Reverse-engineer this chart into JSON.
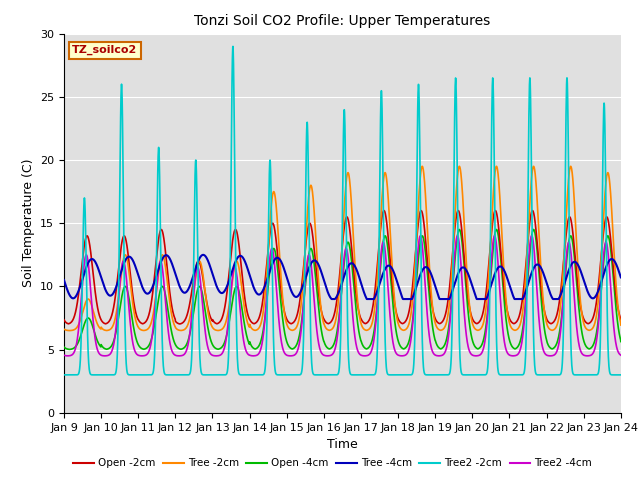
{
  "title": "Tonzi Soil CO2 Profile: Upper Temperatures",
  "xlabel": "Time",
  "ylabel": "Soil Temperature (C)",
  "ylim": [
    0,
    30
  ],
  "xlim_days": [
    9,
    24
  ],
  "plot_bg_color": "#e0e0e0",
  "series": {
    "Open_2cm": {
      "color": "#cc0000",
      "label": "Open -2cm"
    },
    "Tree_2cm": {
      "color": "#ff8800",
      "label": "Tree -2cm"
    },
    "Open_4cm": {
      "color": "#00bb00",
      "label": "Open -4cm"
    },
    "Tree_4cm": {
      "color": "#0000bb",
      "label": "Tree -4cm"
    },
    "Tree2_2cm": {
      "color": "#00cccc",
      "label": "Tree2 -2cm"
    },
    "Tree2_4cm": {
      "color": "#cc00cc",
      "label": "Tree2 -4cm"
    }
  },
  "watermark": "TZ_soilco2",
  "xtick_labels": [
    "Jan 9",
    "Jan 10",
    "Jan 11",
    "Jan 12",
    "Jan 13",
    "Jan 14",
    "Jan 15",
    "Jan 16",
    "Jan 17",
    "Jan 18",
    "Jan 19",
    "Jan 20",
    "Jan 21",
    "Jan 22",
    "Jan 23",
    "Jan 24"
  ],
  "xtick_positions": [
    9,
    10,
    11,
    12,
    13,
    14,
    15,
    16,
    17,
    18,
    19,
    20,
    21,
    22,
    23,
    24
  ],
  "ytick_positions": [
    0,
    5,
    10,
    15,
    20,
    25,
    30
  ],
  "figsize": [
    6.4,
    4.8
  ],
  "dpi": 100
}
